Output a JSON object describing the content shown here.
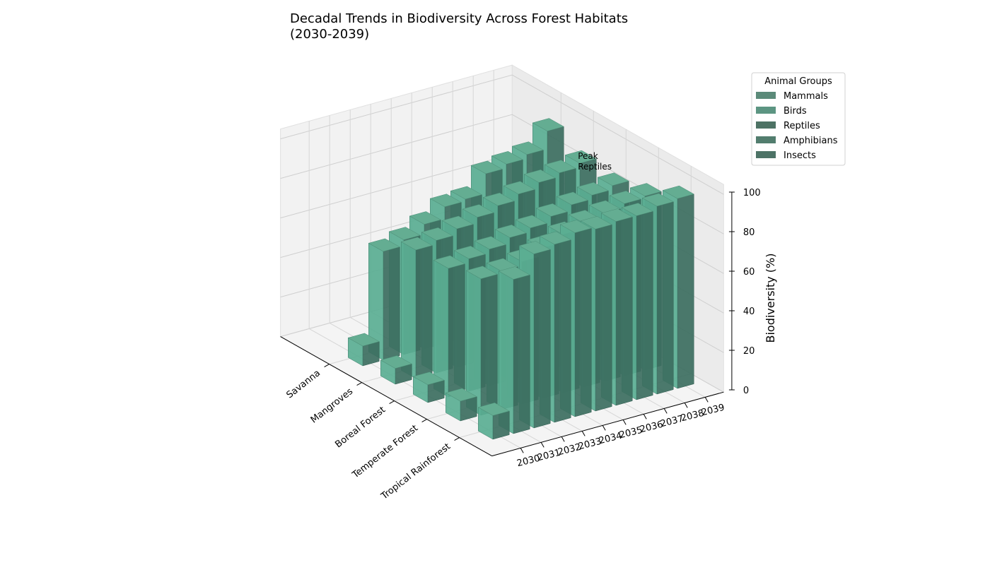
{
  "chart_data": {
    "type": "bar3d",
    "title": "Decadal Trends in Biodiversity Across Forest Habitats\n(2030-2039)",
    "zlabel": "Biodiversity (%)",
    "zlim": [
      0,
      100
    ],
    "z_ticks": [
      0,
      20,
      40,
      60,
      80,
      100
    ],
    "habitats": [
      "Tropical Rainforest",
      "Temperate Forest",
      "Boreal Forest",
      "Mangroves",
      "Savanna"
    ],
    "years": [
      "2030",
      "2031",
      "2032",
      "2033",
      "2034",
      "2035",
      "2036",
      "2037",
      "2038",
      "2039"
    ],
    "legend": {
      "title": "Animal Groups",
      "placement": "upper-right",
      "entries": [
        {
          "name": "Mammals",
          "color": "#5b8a79"
        },
        {
          "name": "Birds",
          "color": "#5c9582"
        },
        {
          "name": "Reptiles",
          "color": "#4d7264"
        },
        {
          "name": "Amphibians",
          "color": "#527d6e"
        },
        {
          "name": "Insects",
          "color": "#4d7366"
        }
      ]
    },
    "annotation": {
      "text": "Peak\nReptiles",
      "habitat": "Tropical Rainforest",
      "year": "2035"
    },
    "face_colors": {
      "top": "#64ad92",
      "front": "#3c6e60",
      "side": "#5aae93"
    },
    "values": [
      [
        12,
        78,
        88,
        90,
        93,
        92,
        93,
        93,
        95,
        96
      ],
      [
        10,
        69,
        70,
        72,
        76,
        80,
        83,
        85,
        87,
        88
      ],
      [
        9,
        65,
        67,
        69,
        72,
        74,
        77,
        80,
        82,
        84
      ],
      [
        8,
        65,
        67,
        70,
        73,
        76,
        79,
        82,
        84,
        86
      ],
      [
        10,
        55,
        58,
        63,
        69,
        70,
        80,
        82,
        84,
        93
      ]
    ]
  }
}
